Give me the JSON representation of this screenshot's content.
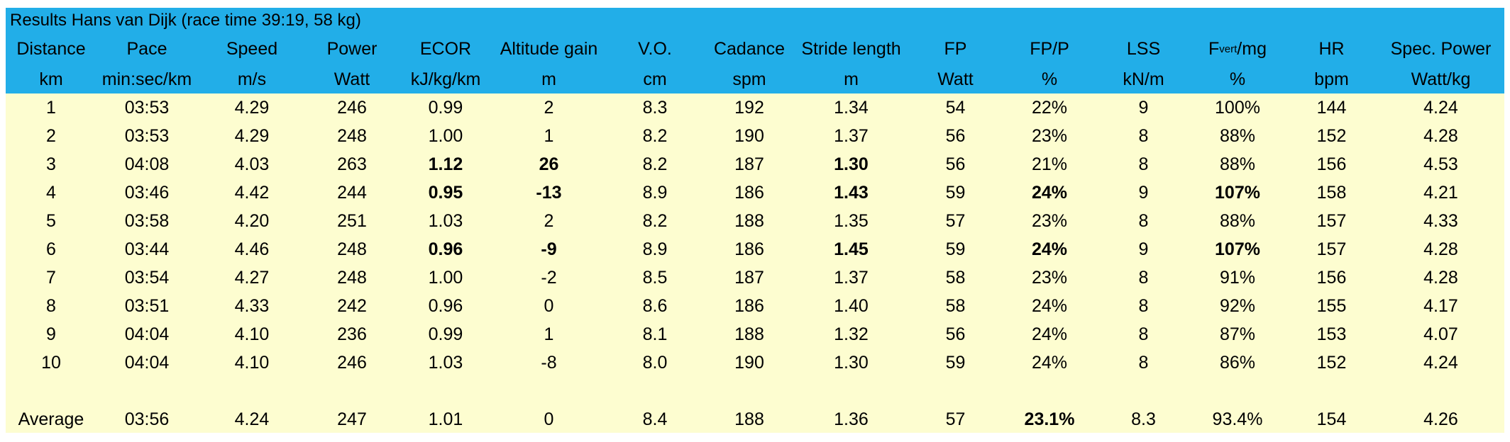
{
  "title": "Results Hans van Dijk (race time 39:19, 58 kg)",
  "header": {
    "names": [
      "Distance",
      "Pace",
      "Speed",
      "Power",
      "ECOR",
      "Altitude gain",
      "V.O.",
      "Cadance",
      "Stride length",
      "FP",
      "FP/P",
      "LSS",
      {
        "main": "F",
        "sub": "vert",
        "rest": "/mg"
      },
      "HR",
      "Spec. Power"
    ],
    "units": [
      "km",
      "min:sec/km",
      "m/s",
      "Watt",
      "kJ/kg/km",
      "m",
      "cm",
      "spm",
      "m",
      "Watt",
      "%",
      "kN/m",
      "%",
      "bpm",
      "Watt/kg"
    ]
  },
  "rows": [
    [
      "1",
      "03:53",
      "4.29",
      "246",
      "0.99",
      "2",
      "8.3",
      "192",
      "1.34",
      "54",
      "22%",
      "9",
      "100%",
      "144",
      "4.24"
    ],
    [
      "2",
      "03:53",
      "4.29",
      "248",
      "1.00",
      "1",
      "8.2",
      "190",
      "1.37",
      "56",
      "23%",
      "8",
      "88%",
      "152",
      "4.28"
    ],
    [
      "3",
      "04:08",
      "4.03",
      "263",
      "1.12",
      "26",
      "8.2",
      "187",
      "1.30",
      "56",
      "21%",
      "8",
      "88%",
      "156",
      "4.53"
    ],
    [
      "4",
      "03:46",
      "4.42",
      "244",
      "0.95",
      "-13",
      "8.9",
      "186",
      "1.43",
      "59",
      "24%",
      "9",
      "107%",
      "158",
      "4.21"
    ],
    [
      "5",
      "03:58",
      "4.20",
      "251",
      "1.03",
      "2",
      "8.2",
      "188",
      "1.35",
      "57",
      "23%",
      "8",
      "88%",
      "157",
      "4.33"
    ],
    [
      "6",
      "03:44",
      "4.46",
      "248",
      "0.96",
      "-9",
      "8.9",
      "186",
      "1.45",
      "59",
      "24%",
      "9",
      "107%",
      "157",
      "4.28"
    ],
    [
      "7",
      "03:54",
      "4.27",
      "248",
      "1.00",
      "-2",
      "8.5",
      "187",
      "1.37",
      "58",
      "23%",
      "8",
      "91%",
      "156",
      "4.28"
    ],
    [
      "8",
      "03:51",
      "4.33",
      "242",
      "0.96",
      "0",
      "8.6",
      "186",
      "1.40",
      "58",
      "24%",
      "8",
      "92%",
      "155",
      "4.17"
    ],
    [
      "9",
      "04:04",
      "4.10",
      "236",
      "0.99",
      "1",
      "8.1",
      "188",
      "1.32",
      "56",
      "24%",
      "8",
      "87%",
      "153",
      "4.07"
    ],
    [
      "10",
      "04:04",
      "4.10",
      "246",
      "1.03",
      "-8",
      "8.0",
      "190",
      "1.30",
      "59",
      "24%",
      "8",
      "86%",
      "152",
      "4.24"
    ]
  ],
  "average": [
    "Average",
    "03:56",
    "4.24",
    "247",
    "1.01",
    "0",
    "8.4",
    "188",
    "1.36",
    "57",
    "23.1%",
    "8.3",
    "93.4%",
    "154",
    "4.26"
  ]
}
